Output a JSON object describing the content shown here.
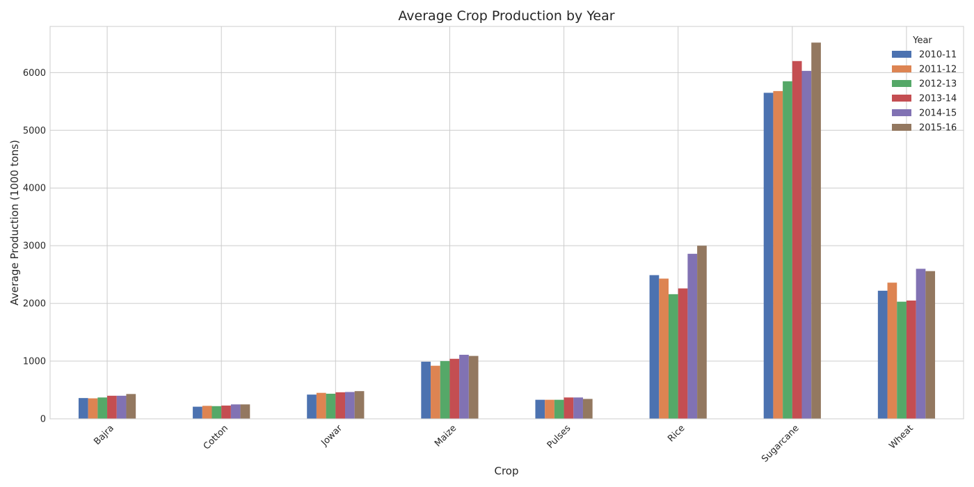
{
  "chart_data": {
    "type": "bar",
    "title": "Average Crop Production by Year",
    "xlabel": "Crop",
    "ylabel": "Average Production (1000 tons)",
    "ylim": [
      0,
      6800
    ],
    "yticks": [
      0,
      1000,
      2000,
      3000,
      4000,
      5000,
      6000
    ],
    "categories": [
      "Bajra",
      "Cotton",
      "Jowar",
      "Maize",
      "Pulses",
      "Rice",
      "Sugarcane",
      "Wheat"
    ],
    "legend_title": "Year",
    "legend_position": "top-right",
    "grid": true,
    "series": [
      {
        "name": "2010-11",
        "color": "#4c72b0",
        "values": [
          360,
          210,
          420,
          990,
          330,
          2490,
          5650,
          2220
        ]
      },
      {
        "name": "2011-12",
        "color": "#dd8452",
        "values": [
          355,
          225,
          450,
          920,
          330,
          2430,
          5680,
          2360
        ]
      },
      {
        "name": "2012-13",
        "color": "#55a868",
        "values": [
          370,
          220,
          435,
          1000,
          330,
          2160,
          5850,
          2030
        ]
      },
      {
        "name": "2013-14",
        "color": "#c44e52",
        "values": [
          400,
          230,
          460,
          1040,
          370,
          2260,
          6200,
          2050
        ]
      },
      {
        "name": "2014-15",
        "color": "#8172b3",
        "values": [
          400,
          250,
          465,
          1110,
          370,
          2860,
          6030,
          2600
        ]
      },
      {
        "name": "2015-16",
        "color": "#937860",
        "values": [
          430,
          250,
          480,
          1090,
          345,
          3000,
          6520,
          2560
        ]
      }
    ]
  }
}
